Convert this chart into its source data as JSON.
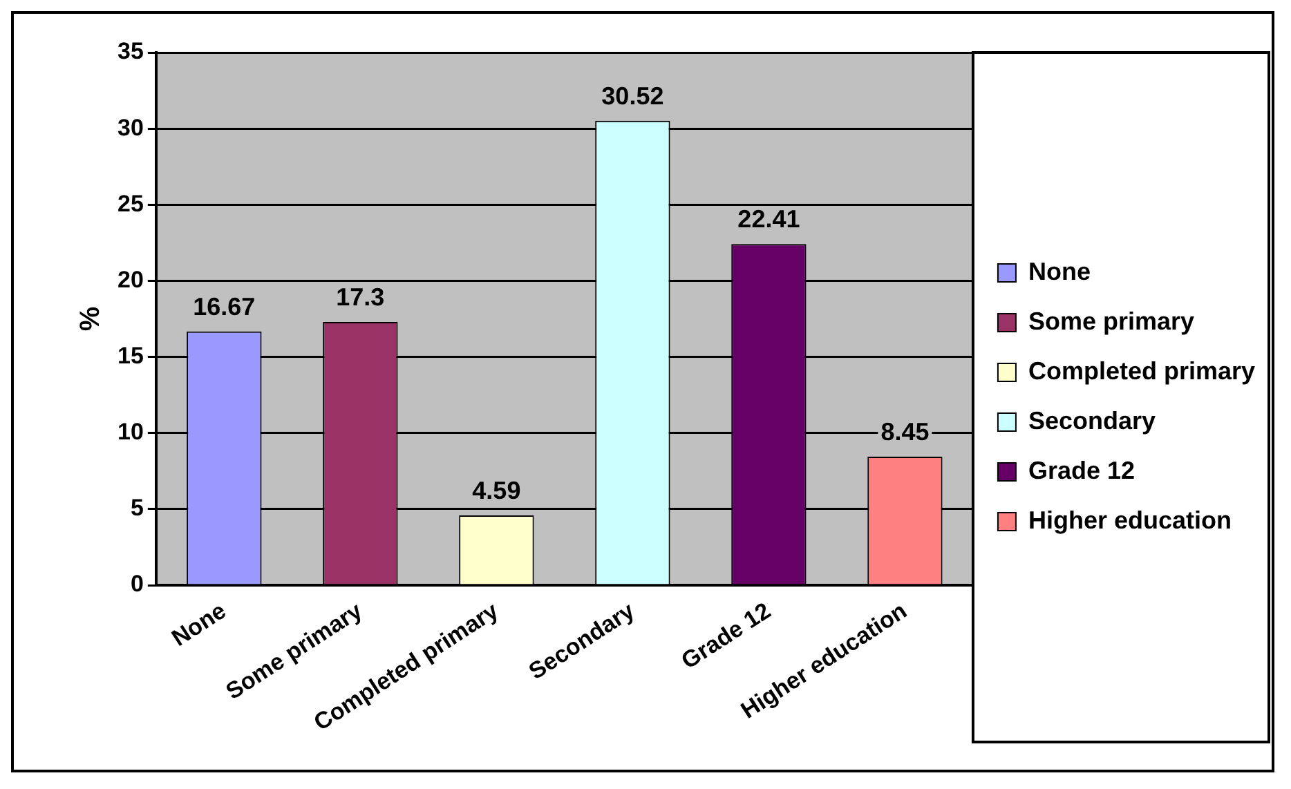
{
  "chart_data": {
    "type": "bar",
    "ylabel": "%",
    "stacked": true,
    "categories": [
      "None",
      "Some primary",
      "Completed primary",
      "Secondary",
      "Grade 12",
      "Higher education"
    ],
    "series": [
      {
        "name": "None",
        "color": "#9999ff",
        "values": [
          16.67,
          null,
          null,
          null,
          null,
          null
        ]
      },
      {
        "name": "Some primary",
        "color": "#993366",
        "values": [
          null,
          17.3,
          null,
          null,
          null,
          null
        ]
      },
      {
        "name": "Completed primary",
        "color": "#ffffcc",
        "values": [
          null,
          null,
          4.59,
          null,
          null,
          null
        ]
      },
      {
        "name": "Secondary",
        "color": "#ccffff",
        "values": [
          null,
          null,
          null,
          30.52,
          null,
          null
        ]
      },
      {
        "name": "Grade 12",
        "color": "#660066",
        "values": [
          null,
          null,
          null,
          null,
          22.41,
          null
        ]
      },
      {
        "name": "Higher education",
        "color": "#ff8080",
        "values": [
          null,
          null,
          null,
          null,
          null,
          8.45
        ]
      }
    ],
    "ylim": [
      0,
      35
    ],
    "yticks": [
      0,
      5,
      10,
      15,
      20,
      25,
      30,
      35
    ],
    "grid": "y",
    "legend": "right",
    "data_labels": true
  }
}
